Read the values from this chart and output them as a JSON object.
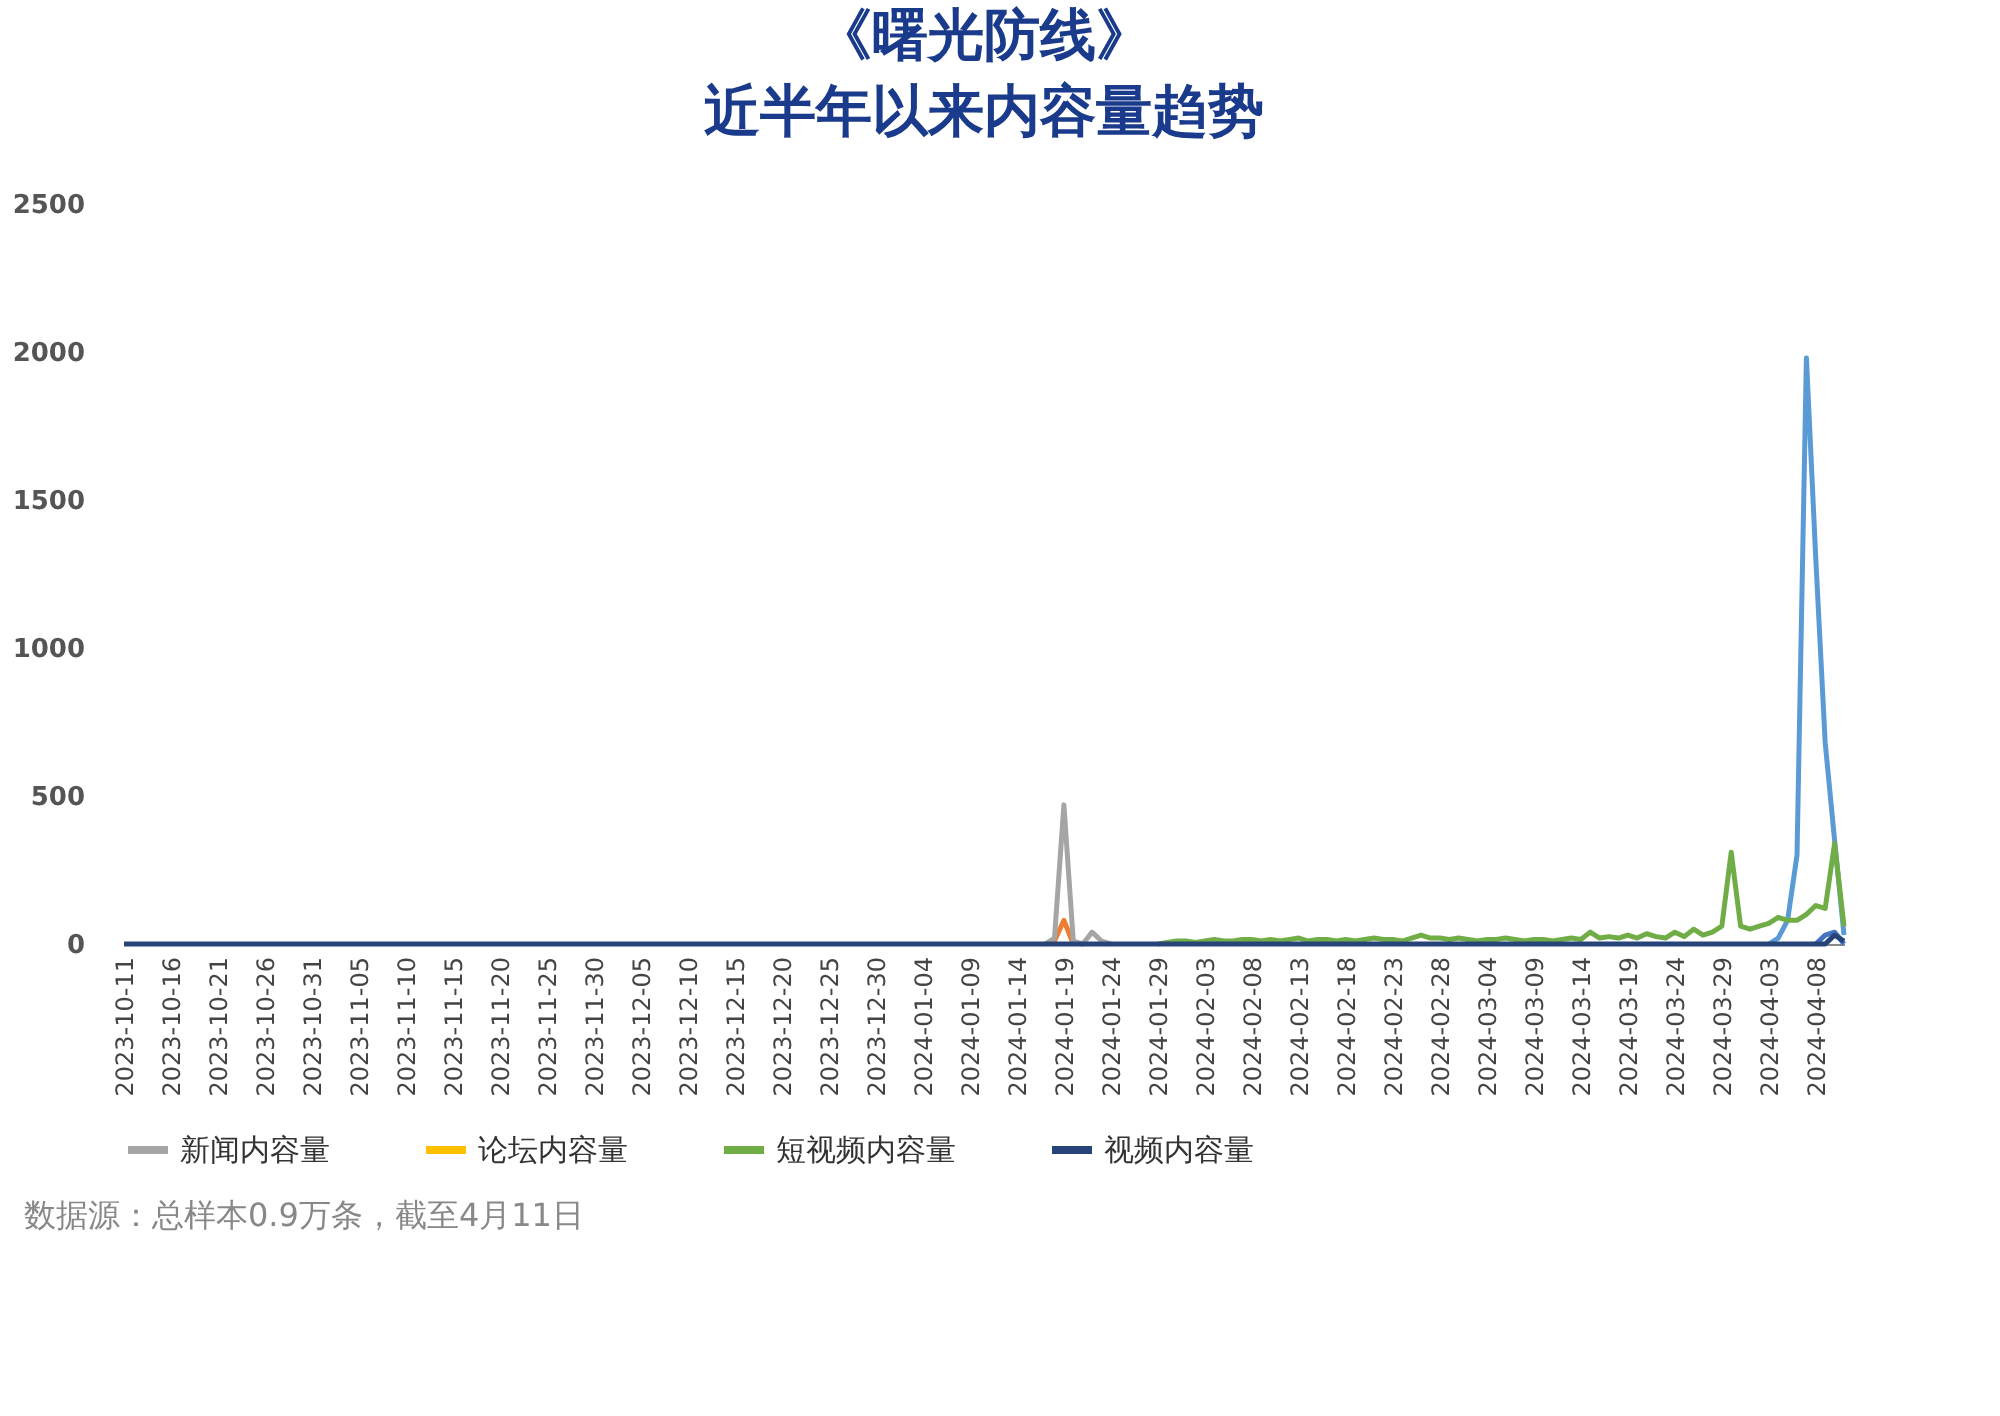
{
  "chart_data": {
    "type": "line",
    "title": "《曙光防线》",
    "subtitle": "近半年以来内容量趋势",
    "annotations": [
      "数据源：总样本0.9万条，截至4月11日"
    ],
    "xlim": [
      "2023-10-11",
      "2024-04-11"
    ],
    "xticks": [
      "2023-10-11",
      "2023-10-16",
      "2023-10-21",
      "2023-10-26",
      "2023-10-31",
      "2023-11-05",
      "2023-11-10",
      "2023-11-15",
      "2023-11-20",
      "2023-11-25",
      "2023-11-30",
      "2023-12-05",
      "2023-12-10",
      "2023-12-15",
      "2023-12-20",
      "2023-12-25",
      "2023-12-30",
      "2024-01-04",
      "2024-01-09",
      "2024-01-14",
      "2024-01-19",
      "2024-01-24",
      "2024-01-29",
      "2024-02-03",
      "2024-02-08",
      "2024-02-13",
      "2024-02-18",
      "2024-02-23",
      "2024-02-28",
      "2024-03-04",
      "2024-03-09",
      "2024-03-14",
      "2024-03-19",
      "2024-03-24",
      "2024-03-29",
      "2024-04-03",
      "2024-04-08"
    ],
    "ylim": [
      0,
      2500
    ],
    "yticks": [
      0,
      500,
      1000,
      1500,
      2000,
      2500
    ],
    "legend": "bottom",
    "series": [
      {
        "color": "#5b9bd5",
        "x": [
          "2024-04-03",
          "2024-04-04",
          "2024-04-05",
          "2024-04-06",
          "2024-04-07",
          "2024-04-08",
          "2024-04-09",
          "2024-04-10",
          "2024-04-11"
        ],
        "values": [
          0,
          20,
          80,
          300,
          1980,
          1300,
          680,
          350,
          30
        ]
      },
      {
        "color": "#ed7d31",
        "x": [
          "2024-01-17",
          "2024-01-18",
          "2024-01-19",
          "2024-01-20"
        ],
        "values": [
          0,
          10,
          80,
          0
        ]
      },
      {
        "name": "新闻内容量",
        "color": "#a5a5a5",
        "x": [
          "2024-01-17",
          "2024-01-18",
          "2024-01-19",
          "2024-01-20",
          "2024-01-21",
          "2024-01-22",
          "2024-01-23",
          "2024-01-24"
        ],
        "values": [
          0,
          20,
          470,
          10,
          0,
          40,
          10,
          0
        ]
      },
      {
        "name": "论坛内容量",
        "color": "#ffc000"
      },
      {
        "color": "#4472c4",
        "x": [
          "2024-04-08",
          "2024-04-09",
          "2024-04-10",
          "2024-04-11"
        ],
        "values": [
          0,
          30,
          40,
          0
        ]
      },
      {
        "name": "短视频内容量",
        "color": "#70ad47",
        "x": [
          "2024-01-29",
          "2024-01-30",
          "2024-01-31",
          "2024-02-01",
          "2024-02-02",
          "2024-02-03",
          "2024-02-04",
          "2024-02-05",
          "2024-02-06",
          "2024-02-07",
          "2024-02-08",
          "2024-02-09",
          "2024-02-10",
          "2024-02-11",
          "2024-02-12",
          "2024-02-13",
          "2024-02-14",
          "2024-02-15",
          "2024-02-16",
          "2024-02-17",
          "2024-02-18",
          "2024-02-19",
          "2024-02-20",
          "2024-02-21",
          "2024-02-22",
          "2024-02-23",
          "2024-02-24",
          "2024-02-25",
          "2024-02-26",
          "2024-02-27",
          "2024-02-28",
          "2024-02-29",
          "2024-03-01",
          "2024-03-02",
          "2024-03-03",
          "2024-03-04",
          "2024-03-05",
          "2024-03-06",
          "2024-03-07",
          "2024-03-08",
          "2024-03-09",
          "2024-03-10",
          "2024-03-11",
          "2024-03-12",
          "2024-03-13",
          "2024-03-14",
          "2024-03-15",
          "2024-03-16",
          "2024-03-17",
          "2024-03-18",
          "2024-03-19",
          "2024-03-20",
          "2024-03-21",
          "2024-03-22",
          "2024-03-23",
          "2024-03-24",
          "2024-03-25",
          "2024-03-26",
          "2024-03-27",
          "2024-03-28",
          "2024-03-29",
          "2024-03-30",
          "2024-03-31",
          "2024-04-01",
          "2024-04-02",
          "2024-04-03",
          "2024-04-04",
          "2024-04-05",
          "2024-04-06",
          "2024-04-07",
          "2024-04-08",
          "2024-04-09",
          "2024-04-10",
          "2024-04-11"
        ],
        "values": [
          0,
          5,
          10,
          10,
          5,
          10,
          15,
          10,
          10,
          15,
          15,
          10,
          15,
          10,
          15,
          20,
          10,
          15,
          15,
          10,
          15,
          10,
          15,
          20,
          15,
          15,
          10,
          20,
          30,
          20,
          20,
          15,
          20,
          15,
          10,
          15,
          15,
          20,
          15,
          10,
          15,
          15,
          10,
          15,
          20,
          15,
          40,
          20,
          25,
          20,
          30,
          20,
          35,
          25,
          20,
          40,
          25,
          50,
          30,
          40,
          60,
          310,
          60,
          50,
          60,
          70,
          90,
          80,
          80,
          100,
          130,
          120,
          340,
          60
        ]
      },
      {
        "name": "视频内容量",
        "color": "#264478",
        "x": [
          "2023-10-11",
          "2024-04-09",
          "2024-04-10",
          "2024-04-11"
        ],
        "values": [
          0,
          0,
          30,
          10
        ]
      }
    ]
  }
}
